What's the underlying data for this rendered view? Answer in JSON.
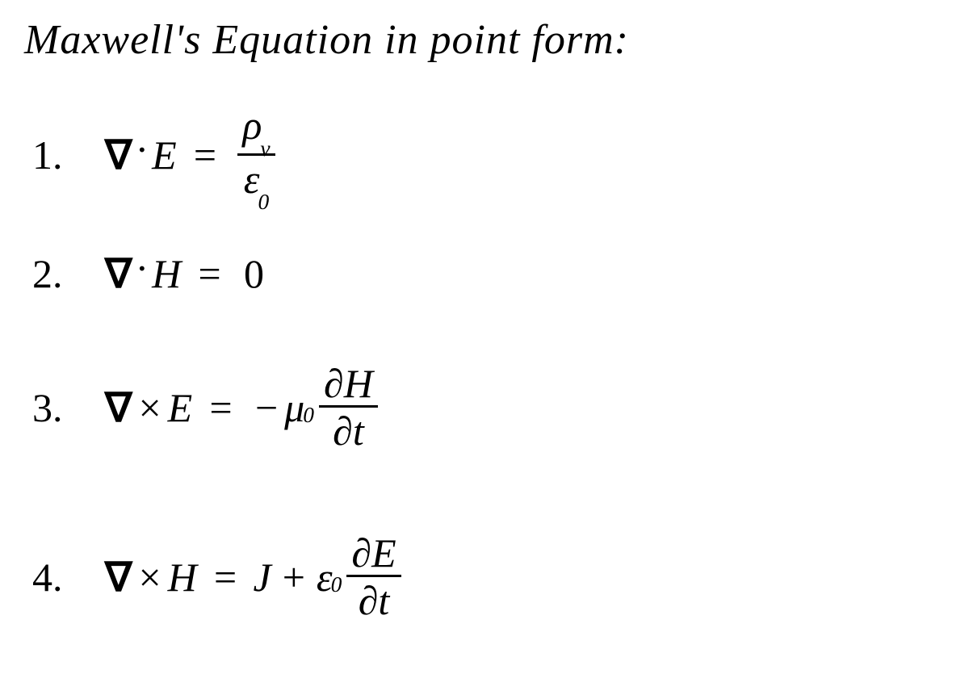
{
  "title": "Maxwell's Equation in point form:",
  "colors": {
    "ink": "#000000",
    "paper": "#ffffff"
  },
  "typography": {
    "family": "Comic Sans MS, Segoe Script, cursive",
    "title_size_pt": 40,
    "eq_size_pt": 38
  },
  "equations": [
    {
      "number": "1.",
      "lhs": {
        "op": "div",
        "nabla": "∇",
        "dot": "·",
        "field": "E"
      },
      "eq": "=",
      "rhs": {
        "type": "frac",
        "top": "ρᵥ",
        "top_sym": "ρ",
        "top_sub": "v",
        "bot_sym": "ε",
        "bot_sub": "0"
      }
    },
    {
      "number": "2.",
      "lhs": {
        "op": "div",
        "nabla": "∇",
        "dot": "·",
        "field": "H"
      },
      "eq": "=",
      "rhs": {
        "type": "zero",
        "value": "0"
      }
    },
    {
      "number": "3.",
      "lhs": {
        "op": "curl",
        "nabla": "∇",
        "cross": "×",
        "field": "E"
      },
      "eq": "=",
      "rhs": {
        "type": "neg_mu_dHdt",
        "minus": "−",
        "mu": "μ",
        "mu_sub": "0",
        "frac": {
          "top_d": "∂",
          "top_field": "H",
          "bot_d": "∂",
          "bot_var": "t"
        }
      }
    },
    {
      "number": "4.",
      "lhs": {
        "op": "curl",
        "nabla": "∇",
        "cross": "×",
        "field": "H"
      },
      "eq": "=",
      "rhs": {
        "type": "J_plus_eps_dEdt",
        "J": "J",
        "plus": "+",
        "eps": "ε",
        "eps_sub": "0",
        "frac": {
          "top_d": "∂",
          "top_field": "E",
          "bot_d": "∂",
          "bot_var": "t"
        }
      }
    }
  ]
}
